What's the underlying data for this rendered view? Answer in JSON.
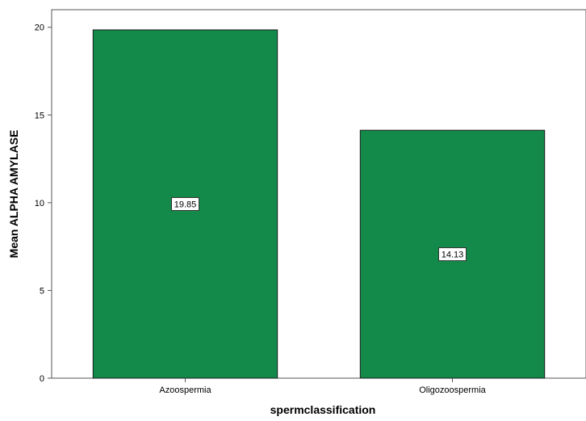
{
  "chart_data": {
    "type": "bar",
    "categories": [
      "Azoospermia",
      "Oligozoospermia"
    ],
    "values": [
      19.85,
      14.13
    ],
    "data_labels": [
      "19.85",
      "14.13"
    ],
    "xlabel": "spermclassification",
    "ylabel": "Mean ALPHA AMYLASE",
    "ylim": [
      0,
      21
    ],
    "yticks": [
      0,
      5,
      10,
      15,
      20
    ],
    "ytick_labels": [
      "0",
      "5",
      "10",
      "15",
      "20"
    ],
    "grid": false,
    "colors": {
      "bar_fill": "#138a4a",
      "bar_stroke": "#1a1a1a",
      "axis": "#555555",
      "background": "#ffffff"
    }
  }
}
